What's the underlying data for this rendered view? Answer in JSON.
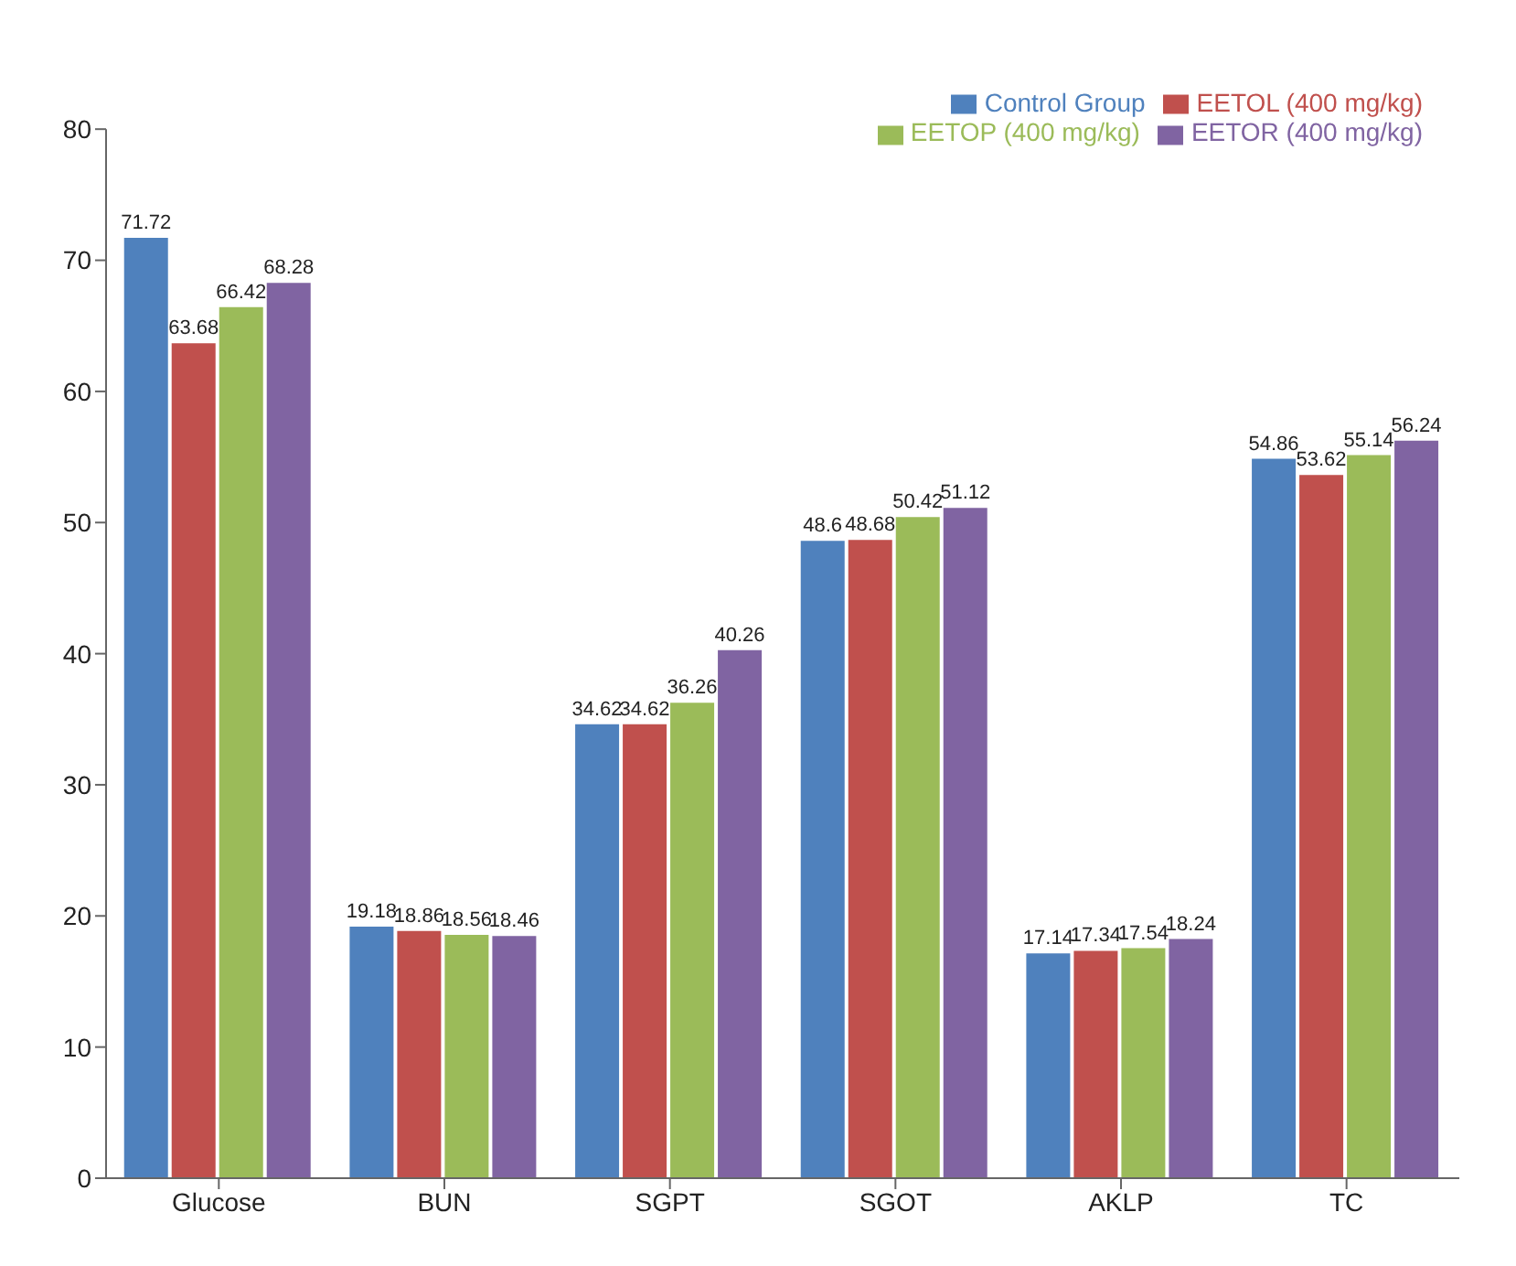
{
  "chart_data": {
    "type": "bar",
    "categories": [
      "Glucose",
      "BUN",
      "SGPT",
      "SGOT",
      "AKLP",
      "TC"
    ],
    "series": [
      {
        "name": "Control Group",
        "color": "#4f81bd",
        "values": [
          71.72,
          19.18,
          34.62,
          48.6,
          17.14,
          54.86
        ]
      },
      {
        "name": "EETOL (400 mg/kg)",
        "color": "#c0504d",
        "values": [
          63.68,
          18.86,
          34.62,
          48.68,
          17.34,
          53.62
        ]
      },
      {
        "name": "EETOP (400 mg/kg)",
        "color": "#9bbb59",
        "values": [
          66.42,
          18.56,
          36.26,
          50.42,
          17.54,
          55.14
        ]
      },
      {
        "name": "EETOR (400 mg/kg)",
        "color": "#8064a2",
        "values": [
          68.28,
          18.46,
          40.26,
          51.12,
          18.24,
          56.24
        ]
      }
    ],
    "ylim": [
      0,
      80
    ],
    "yticks": [
      0,
      10,
      20,
      30,
      40,
      50,
      60,
      70,
      80
    ],
    "grid": false,
    "legend": "top right",
    "data_labels": true
  }
}
